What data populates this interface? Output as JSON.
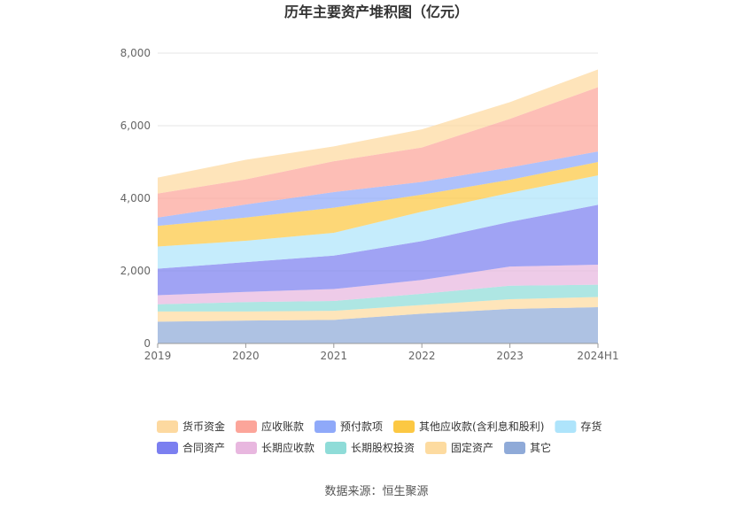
{
  "title": "历年主要资产堆积图（亿元）",
  "source": "数据来源：恒生聚源",
  "chart_data": {
    "type": "area",
    "stacked": true,
    "title": "历年主要资产堆积图（亿元）",
    "xlabel": "",
    "ylabel": "",
    "categories": [
      "2019",
      "2020",
      "2021",
      "2022",
      "2023",
      "2024H1"
    ],
    "ylim": [
      0,
      8000
    ],
    "yticks": [
      0,
      2000,
      4000,
      6000,
      8000
    ],
    "ytick_labels": [
      "0",
      "2,000",
      "4,000",
      "6,000",
      "8,000"
    ],
    "grid": true,
    "legend_position": "bottom",
    "series": [
      {
        "name": "其它",
        "color": "#8faad8",
        "values": [
          600,
          630,
          650,
          820,
          950,
          1000
        ]
      },
      {
        "name": "固定资产",
        "color": "#fddba0",
        "values": [
          280,
          250,
          250,
          240,
          270,
          280
        ]
      },
      {
        "name": "长期股权投资",
        "color": "#8fdcd8",
        "values": [
          200,
          260,
          270,
          310,
          370,
          340
        ]
      },
      {
        "name": "长期应收款",
        "color": "#e8b7df",
        "values": [
          250,
          280,
          330,
          380,
          530,
          550
        ]
      },
      {
        "name": "合同资产",
        "color": "#7b7ff0",
        "values": [
          730,
          820,
          920,
          1070,
          1230,
          1650
        ]
      },
      {
        "name": "存货",
        "color": "#aee4fb",
        "values": [
          610,
          590,
          630,
          810,
          800,
          810
        ]
      },
      {
        "name": "其他应收款(含利息和股利)",
        "color": "#fcc843",
        "values": [
          570,
          640,
          690,
          470,
          360,
          370
        ]
      },
      {
        "name": "预付款项",
        "color": "#8fa9f9",
        "values": [
          230,
          360,
          430,
          350,
          340,
          290
        ]
      },
      {
        "name": "应收账款",
        "color": "#fca59a",
        "values": [
          660,
          690,
          850,
          950,
          1340,
          1770
        ]
      },
      {
        "name": "货币资金",
        "color": "#fdd9a0",
        "values": [
          440,
          540,
          410,
          500,
          460,
          490
        ]
      }
    ],
    "legend_order": [
      "货币资金",
      "应收账款",
      "预付款项",
      "其他应收款(含利息和股利)",
      "存货",
      "合同资产",
      "长期应收款",
      "长期股权投资",
      "固定资产",
      "其它"
    ]
  }
}
